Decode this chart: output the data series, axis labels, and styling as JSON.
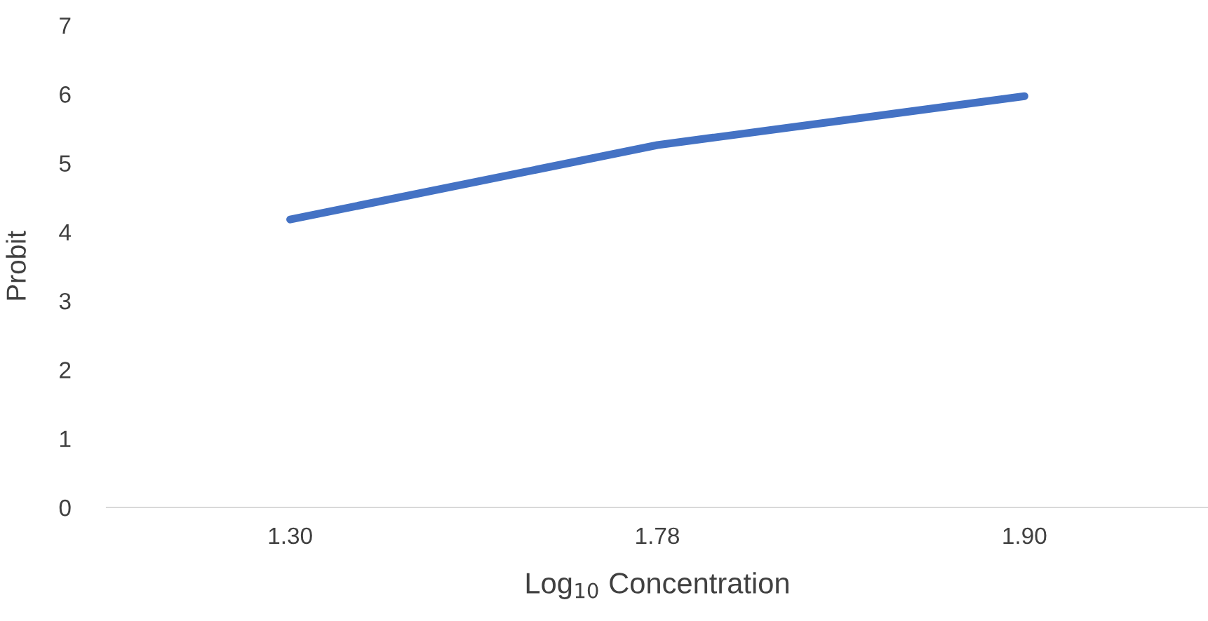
{
  "chart_data": {
    "type": "line",
    "xlabel": "Log$_{10}$ Concentration",
    "ylabel": "Probit",
    "categories": [
      "1.30",
      "1.78",
      "1.90"
    ],
    "series": [
      {
        "color": "#4472c4",
        "values": [
          4.18,
          5.26,
          5.97
        ]
      }
    ],
    "ylim": [
      0,
      7
    ],
    "yticks": [
      0,
      1,
      2,
      3,
      4,
      5,
      6,
      7
    ],
    "grid": false,
    "legend": false,
    "marker": "none",
    "line_style": "solid"
  }
}
